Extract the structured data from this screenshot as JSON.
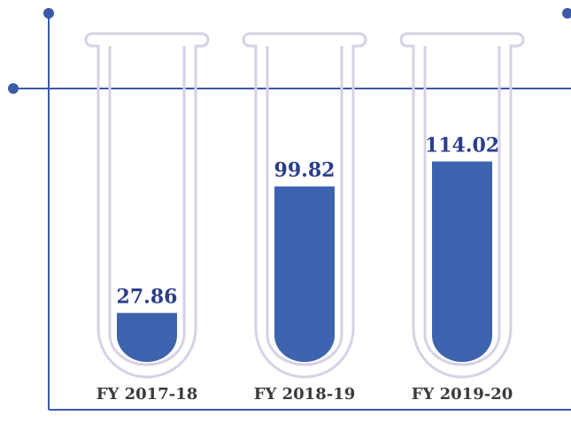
{
  "chart_data": {
    "type": "bar",
    "categories": [
      "FY 2017-18",
      "FY 2018-19",
      "FY 2019-20"
    ],
    "values": [
      27.86,
      99.82,
      114.02
    ],
    "color": "#3d63ae"
  }
}
